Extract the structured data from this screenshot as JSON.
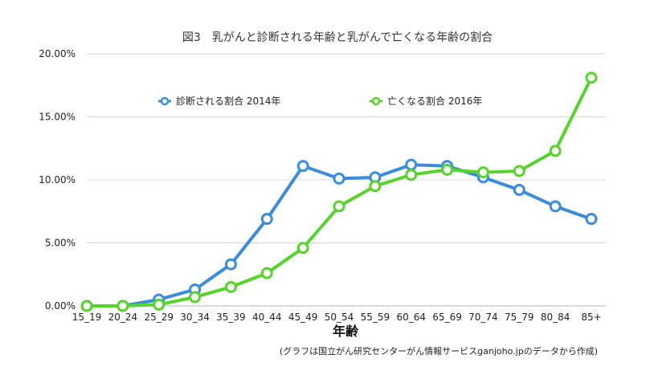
{
  "chart_data": {
    "type": "line",
    "title": "図3　乳がんと診断される年齢と乳がんで亡くなる年齢の割合",
    "xlabel": "年齢",
    "ylabel": "",
    "categories": [
      "15_19",
      "20_24",
      "25_29",
      "30_34",
      "35_39",
      "40_44",
      "45_49",
      "50_54",
      "55_59",
      "60_64",
      "65_69",
      "70_74",
      "75_79",
      "80_84",
      "85+"
    ],
    "series": [
      {
        "name": "診断される割合 2014年",
        "color": "#3a8ddd",
        "values": [
          0.0,
          0.0,
          0.5,
          1.3,
          3.3,
          6.9,
          11.1,
          10.1,
          10.2,
          11.2,
          11.1,
          10.2,
          9.2,
          7.9,
          6.9
        ]
      },
      {
        "name": "亡くなる割合 2016年",
        "color": "#56d42c",
        "values": [
          0.0,
          0.0,
          0.1,
          0.7,
          1.5,
          2.6,
          4.6,
          7.9,
          9.5,
          10.4,
          10.8,
          10.6,
          10.7,
          12.3,
          18.1
        ]
      }
    ],
    "yticks": [
      "0.00%",
      "5.00%",
      "10.00%",
      "15.00%",
      "20.00%"
    ],
    "ylim": [
      0,
      20
    ],
    "grid": true,
    "legend": "top",
    "note": "(グラフは国立がん研究センターがん情報サービスganjoho.jpのデータから作成)"
  }
}
